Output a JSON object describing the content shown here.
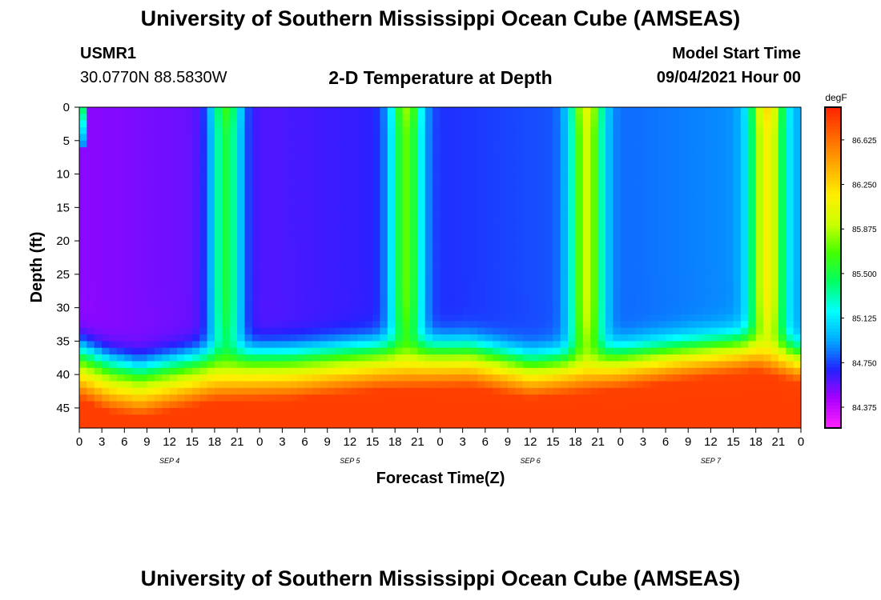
{
  "header": {
    "title": "University of Southern Mississippi Ocean Cube (AMSEAS)",
    "station_id": "USMR1",
    "coordinates": "30.0770N  88.5830W",
    "model_start_label": "Model Start Time",
    "model_start_value": "09/04/2021 Hour 00"
  },
  "footer": {
    "title": "University of Southern Mississippi Ocean Cube (AMSEAS)"
  },
  "colors": {
    "scale": [
      "#ff22ff",
      "#aa00ff",
      "#2222ff",
      "#00aaff",
      "#00ffff",
      "#00ff66",
      "#44ff00",
      "#ccff00",
      "#ffee00",
      "#ffaa00",
      "#ff6600",
      "#ff2200"
    ]
  },
  "chart_data": {
    "type": "heatmap",
    "title": "2-D Temperature at Depth",
    "xlabel": "Forecast Time(Z)",
    "ylabel": "Depth (ft)",
    "x_range_hours": [
      0,
      96
    ],
    "ylim": [
      0,
      48
    ],
    "y_ticks": [
      "0",
      "5",
      "10",
      "15",
      "20",
      "25",
      "30",
      "35",
      "40",
      "45"
    ],
    "x_ticks": [
      "0",
      "3",
      "6",
      "9",
      "12",
      "15",
      "18",
      "21",
      "0",
      "3",
      "6",
      "9",
      "12",
      "15",
      "18",
      "21",
      "0",
      "3",
      "6",
      "9",
      "12",
      "15",
      "18",
      "21",
      "0",
      "3",
      "6",
      "9",
      "12",
      "15",
      "18",
      "21",
      "0"
    ],
    "day_labels": [
      "SEP 4",
      "SEP 5",
      "SEP 6",
      "SEP 7"
    ],
    "colorbar": {
      "unit": "degF",
      "range": [
        84.2,
        86.9
      ],
      "tick_labels": [
        "86.625",
        "86.250",
        "85.875",
        "85.500",
        "85.125",
        "84.750",
        "84.375"
      ]
    },
    "features": {
      "thermocline_depth_ft": [
        35,
        37,
        38,
        37,
        36,
        36,
        35,
        35,
        37,
        36,
        35,
        34,
        36
      ],
      "thermocline_hours": [
        0,
        4,
        8,
        13,
        18,
        28,
        40,
        52,
        60,
        72,
        80,
        90,
        96
      ],
      "coldest_surface_temp_degF": 84.3,
      "warmest_bottom_temp_degF": 86.8
    }
  }
}
